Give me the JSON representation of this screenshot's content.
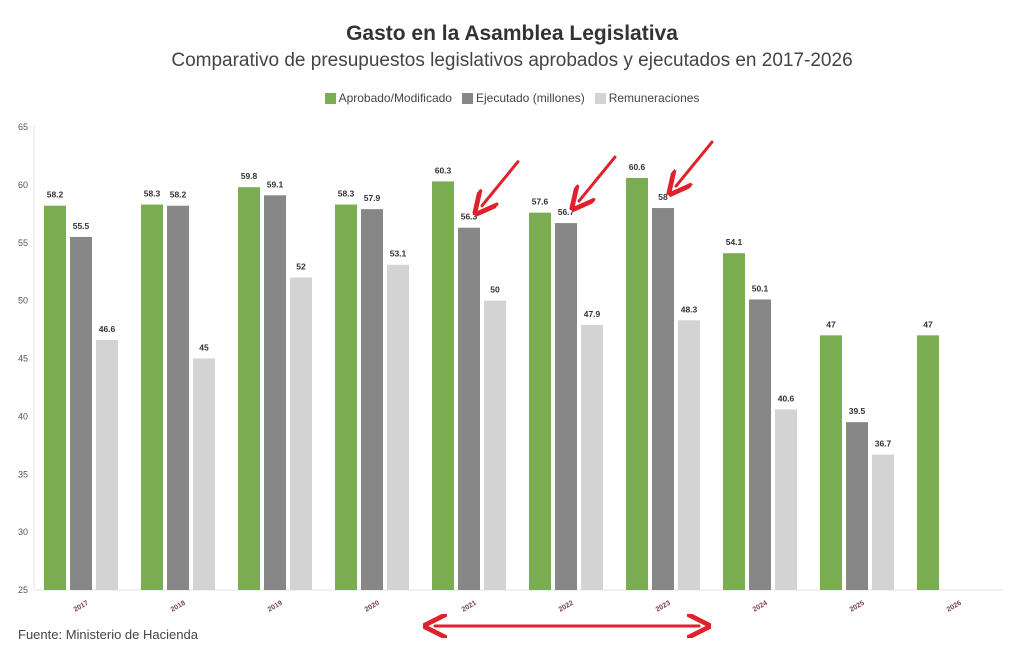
{
  "title": "Gasto en la Asamblea Legislativa",
  "subtitle": "Comparativo de presupuestos legislativos aprobados y ejecutados en 2017-2026",
  "source": "Fuente: Ministerio de Hacienda",
  "legend": [
    {
      "label": "Aprobado/Modificado",
      "color": "#7aac51"
    },
    {
      "label": "Ejecutado (millones)",
      "color": "#878787"
    },
    {
      "label": "Remuneraciones",
      "color": "#d3d3d3"
    }
  ],
  "chart_data": {
    "type": "bar",
    "title": "Gasto en la Asamblea Legislativa",
    "subtitle": "Comparativo de presupuestos legislativos aprobados y ejecutados en 2017-2026",
    "categories": [
      "2017",
      "2018",
      "2019",
      "2020",
      "2021",
      "2022",
      "2023",
      "2024",
      "2025",
      "2026"
    ],
    "series": [
      {
        "name": "Aprobado/Modificado",
        "color": "#7aac51",
        "values": [
          58.2,
          58.3,
          59.8,
          58.3,
          60.3,
          57.6,
          60.6,
          54.1,
          47,
          47
        ]
      },
      {
        "name": "Ejecutado (millones)",
        "color": "#878787",
        "values": [
          55.5,
          58.2,
          59.1,
          57.9,
          56.3,
          56.7,
          58,
          50.1,
          39.5,
          null
        ]
      },
      {
        "name": "Remuneraciones",
        "color": "#d3d3d3",
        "values": [
          46.6,
          45,
          52,
          53.1,
          50,
          47.9,
          48.3,
          40.6,
          36.7,
          null
        ]
      }
    ],
    "ylim": [
      25,
      65
    ],
    "yticks": [
      25,
      30,
      35,
      40,
      45,
      50,
      55,
      60,
      65
    ],
    "grid": false,
    "legend_position": "top-center",
    "annotations": {
      "arrows_point_to": [
        "2021",
        "2022",
        "2023"
      ],
      "range_arrow": [
        "2021",
        "2023"
      ],
      "annotation_color": "#e0202a"
    }
  }
}
